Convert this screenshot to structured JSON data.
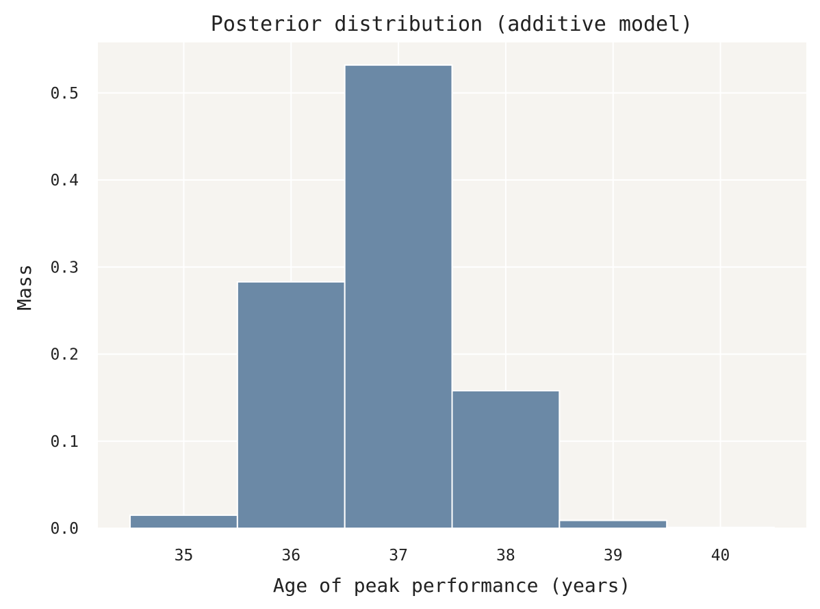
{
  "chart_data": {
    "type": "bar",
    "title": "Posterior distribution (additive model)",
    "xlabel": "Age of peak performance (years)",
    "ylabel": "Mass",
    "x": [
      35,
      36,
      37,
      38,
      39,
      40
    ],
    "values": [
      0.015,
      0.283,
      0.532,
      0.158,
      0.009,
      0.001
    ],
    "bin_width": 1,
    "xticks": [
      35,
      36,
      37,
      38,
      39,
      40
    ],
    "yticks": [
      0.0,
      0.1,
      0.2,
      0.3,
      0.4,
      0.5
    ],
    "ytick_labels": [
      "0.0",
      "0.1",
      "0.2",
      "0.3",
      "0.4",
      "0.5"
    ],
    "xlim": [
      34.2,
      40.8
    ],
    "ylim": [
      0,
      0.558
    ],
    "grid": true,
    "colors": {
      "bar": "#6b89a6",
      "plot_background": "#f6f4f0",
      "grid": "#ffffff",
      "text": "#222222"
    }
  }
}
